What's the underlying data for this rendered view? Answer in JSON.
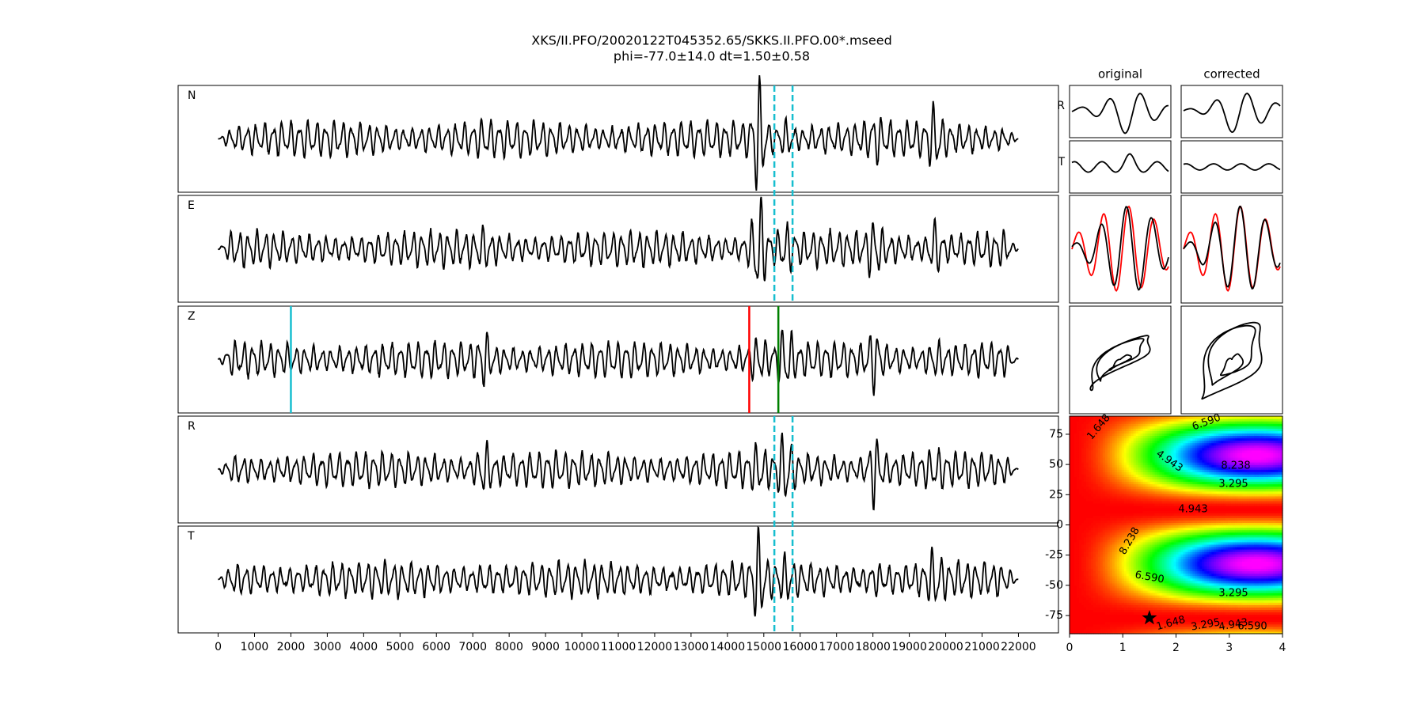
{
  "title": "XKS/II.PFO/20020122T045352.65/SKKS.II.PFO.00*.mseed",
  "subtitle": "phi=-77.0±14.0 dt=1.50±0.58",
  "traces": [
    "N",
    "E",
    "Z",
    "R",
    "T"
  ],
  "time_axis": {
    "xlim": [
      -1100,
      23100
    ],
    "xticks": [
      0,
      1000,
      2000,
      3000,
      4000,
      5000,
      6000,
      7000,
      8000,
      9000,
      10000,
      11000,
      12000,
      13000,
      14000,
      15000,
      16000,
      17000,
      18000,
      19000,
      20000,
      21000,
      22000
    ]
  },
  "window_lines": {
    "color": "#17becf",
    "values": [
      15290,
      15790
    ]
  },
  "picks": [
    {
      "color": "#17becf",
      "value": 2000
    },
    {
      "color": "#ff0000",
      "value": 14600
    },
    {
      "color": "#008000",
      "value": 15400
    }
  ],
  "particle_motion": {
    "columns": [
      "original",
      "corrected"
    ],
    "rows": [
      "R",
      "T"
    ]
  },
  "error_surface": {
    "xlim": [
      0,
      4
    ],
    "xticks": [
      0,
      1,
      2,
      3,
      4
    ],
    "ylim": [
      -90,
      90
    ],
    "yticks": [
      75,
      50,
      25,
      0,
      -25,
      -50,
      -75
    ],
    "contour_labels": [
      "1.648",
      "3.295",
      "4.943",
      "6.590",
      "8.238"
    ],
    "best": {
      "dt": 1.5,
      "phi": -77
    }
  }
}
